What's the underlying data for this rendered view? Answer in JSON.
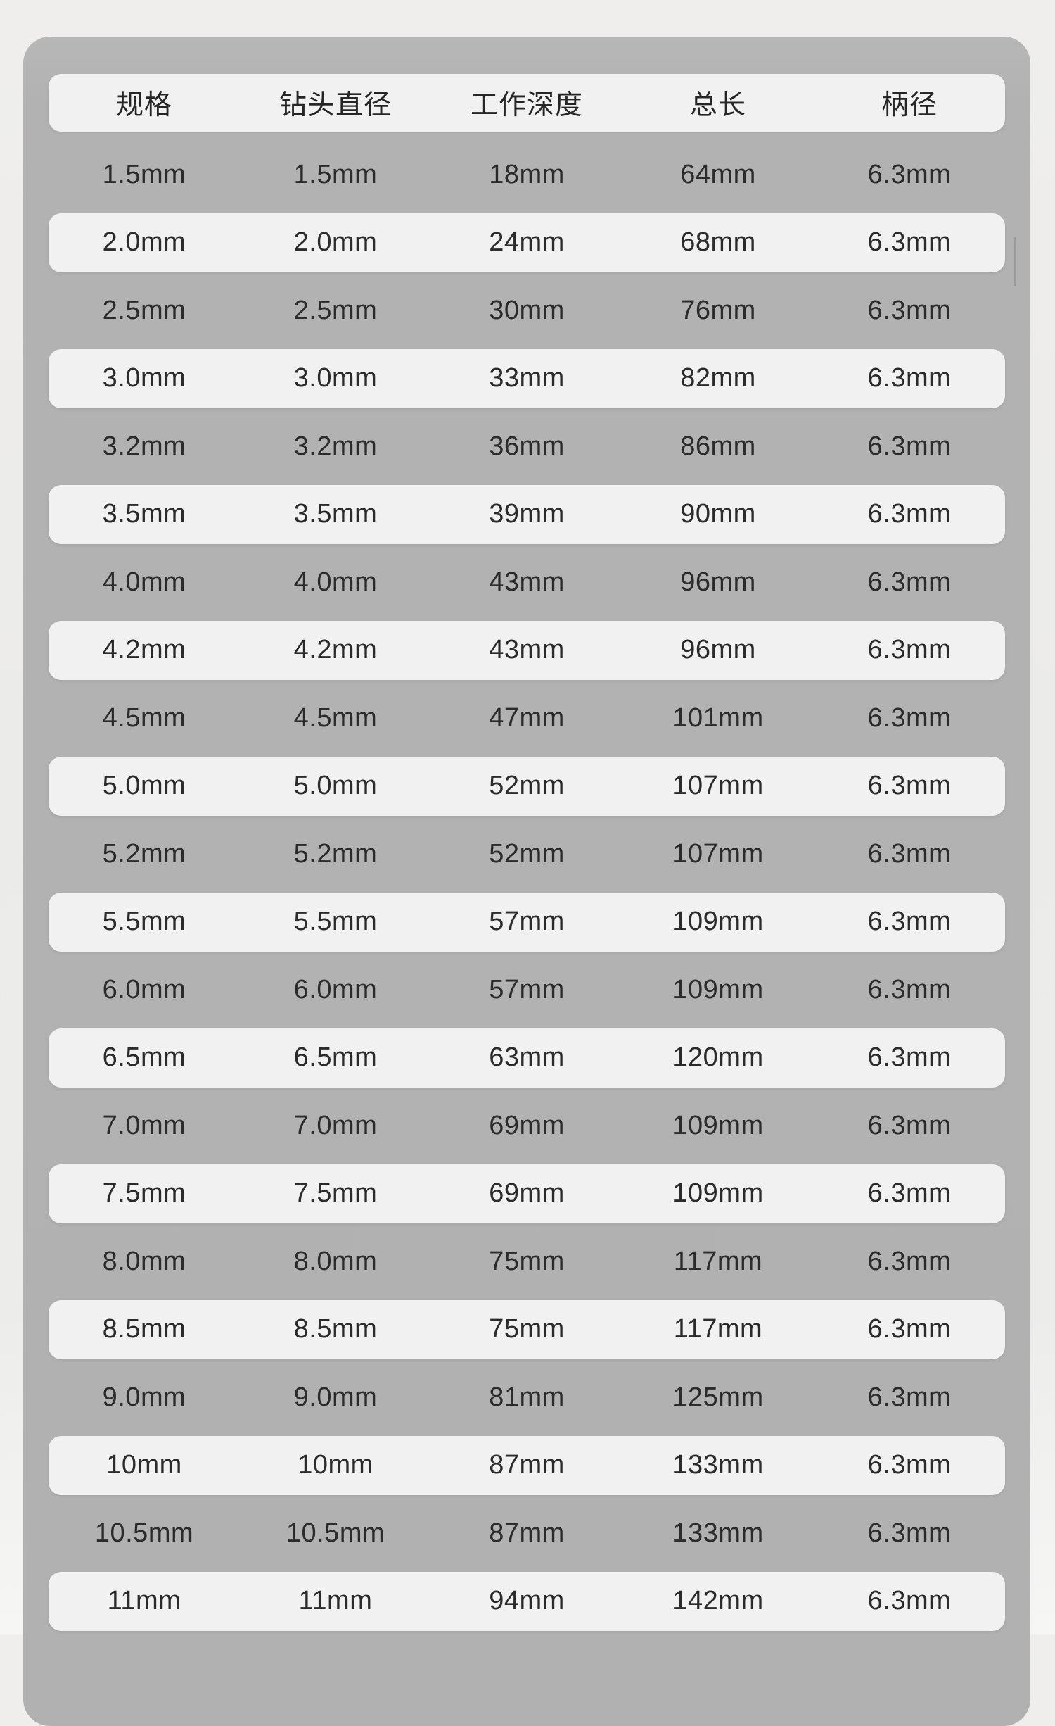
{
  "style": {
    "page_background": "#ececeb",
    "panel_color": "#b1b1b1",
    "row_highlight_color": "#f1f1f1",
    "text_color": "#2b2b2b",
    "scroll_indicator_color": "#9b9b9b"
  },
  "chart_data": {
    "type": "table",
    "columns": [
      "规格",
      "钻头直径",
      "工作深度",
      "总长",
      "柄径"
    ],
    "rows": [
      [
        "1.5mm",
        "1.5mm",
        "18mm",
        "64mm",
        "6.3mm"
      ],
      [
        "2.0mm",
        "2.0mm",
        "24mm",
        "68mm",
        "6.3mm"
      ],
      [
        "2.5mm",
        "2.5mm",
        "30mm",
        "76mm",
        "6.3mm"
      ],
      [
        "3.0mm",
        "3.0mm",
        "33mm",
        "82mm",
        "6.3mm"
      ],
      [
        "3.2mm",
        "3.2mm",
        "36mm",
        "86mm",
        "6.3mm"
      ],
      [
        "3.5mm",
        "3.5mm",
        "39mm",
        "90mm",
        "6.3mm"
      ],
      [
        "4.0mm",
        "4.0mm",
        "43mm",
        "96mm",
        "6.3mm"
      ],
      [
        "4.2mm",
        "4.2mm",
        "43mm",
        "96mm",
        "6.3mm"
      ],
      [
        "4.5mm",
        "4.5mm",
        "47mm",
        "101mm",
        "6.3mm"
      ],
      [
        "5.0mm",
        "5.0mm",
        "52mm",
        "107mm",
        "6.3mm"
      ],
      [
        "5.2mm",
        "5.2mm",
        "52mm",
        "107mm",
        "6.3mm"
      ],
      [
        "5.5mm",
        "5.5mm",
        "57mm",
        "109mm",
        "6.3mm"
      ],
      [
        "6.0mm",
        "6.0mm",
        "57mm",
        "109mm",
        "6.3mm"
      ],
      [
        "6.5mm",
        "6.5mm",
        "63mm",
        "120mm",
        "6.3mm"
      ],
      [
        "7.0mm",
        "7.0mm",
        "69mm",
        "109mm",
        "6.3mm"
      ],
      [
        "7.5mm",
        "7.5mm",
        "69mm",
        "109mm",
        "6.3mm"
      ],
      [
        "8.0mm",
        "8.0mm",
        "75mm",
        "117mm",
        "6.3mm"
      ],
      [
        "8.5mm",
        "8.5mm",
        "75mm",
        "117mm",
        "6.3mm"
      ],
      [
        "9.0mm",
        "9.0mm",
        "81mm",
        "125mm",
        "6.3mm"
      ],
      [
        "10mm",
        "10mm",
        "87mm",
        "133mm",
        "6.3mm"
      ],
      [
        "10.5mm",
        "10.5mm",
        "87mm",
        "133mm",
        "6.3mm"
      ],
      [
        "11mm",
        "11mm",
        "94mm",
        "142mm",
        "6.3mm"
      ]
    ],
    "column_keys": [
      "spec",
      "diameter",
      "work-depth",
      "total-length",
      "shank-diameter"
    ],
    "stripe_pattern": "header white, then rows alternate gray/white starting with gray"
  }
}
